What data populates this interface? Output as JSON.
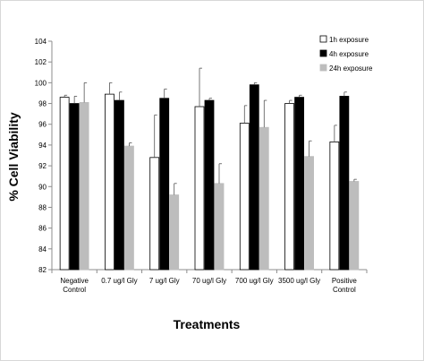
{
  "chart_data": {
    "type": "bar",
    "title": "",
    "xlabel": "Treatments",
    "ylabel": "% Cell Viability",
    "ylim": [
      82,
      104
    ],
    "ytick_step": 2,
    "grid": false,
    "legend_position": "top-right",
    "categories": [
      [
        "Negative",
        "Control"
      ],
      [
        "0.7 ug/l Gly"
      ],
      [
        "7 ug/l Gly"
      ],
      [
        "70 ug/l Gly"
      ],
      [
        "700 ug/l Gly"
      ],
      [
        "3500 ug/l Gly"
      ],
      [
        "Positive",
        "Control"
      ]
    ],
    "series": [
      {
        "name": "1h exposure",
        "color": "#ffffff",
        "stroke": "#000000",
        "values": [
          98.6,
          98.9,
          92.8,
          97.7,
          96.1,
          98.0,
          94.3
        ],
        "errors": [
          0.2,
          1.1,
          4.1,
          3.7,
          1.7,
          0.3,
          1.6
        ]
      },
      {
        "name": "4h exposure",
        "color": "#000000",
        "stroke": "#000000",
        "values": [
          98.0,
          98.3,
          98.5,
          98.3,
          99.8,
          98.6,
          98.7
        ],
        "errors": [
          0.7,
          0.8,
          0.9,
          0.2,
          0.2,
          0.2,
          0.4
        ]
      },
      {
        "name": "24h exposure",
        "color": "#bdbdbd",
        "stroke": "#bdbdbd",
        "values": [
          98.1,
          93.9,
          89.2,
          90.3,
          95.7,
          92.9,
          90.5
        ],
        "errors": [
          1.9,
          0.3,
          1.1,
          1.9,
          2.6,
          1.5,
          0.2
        ]
      }
    ]
  }
}
